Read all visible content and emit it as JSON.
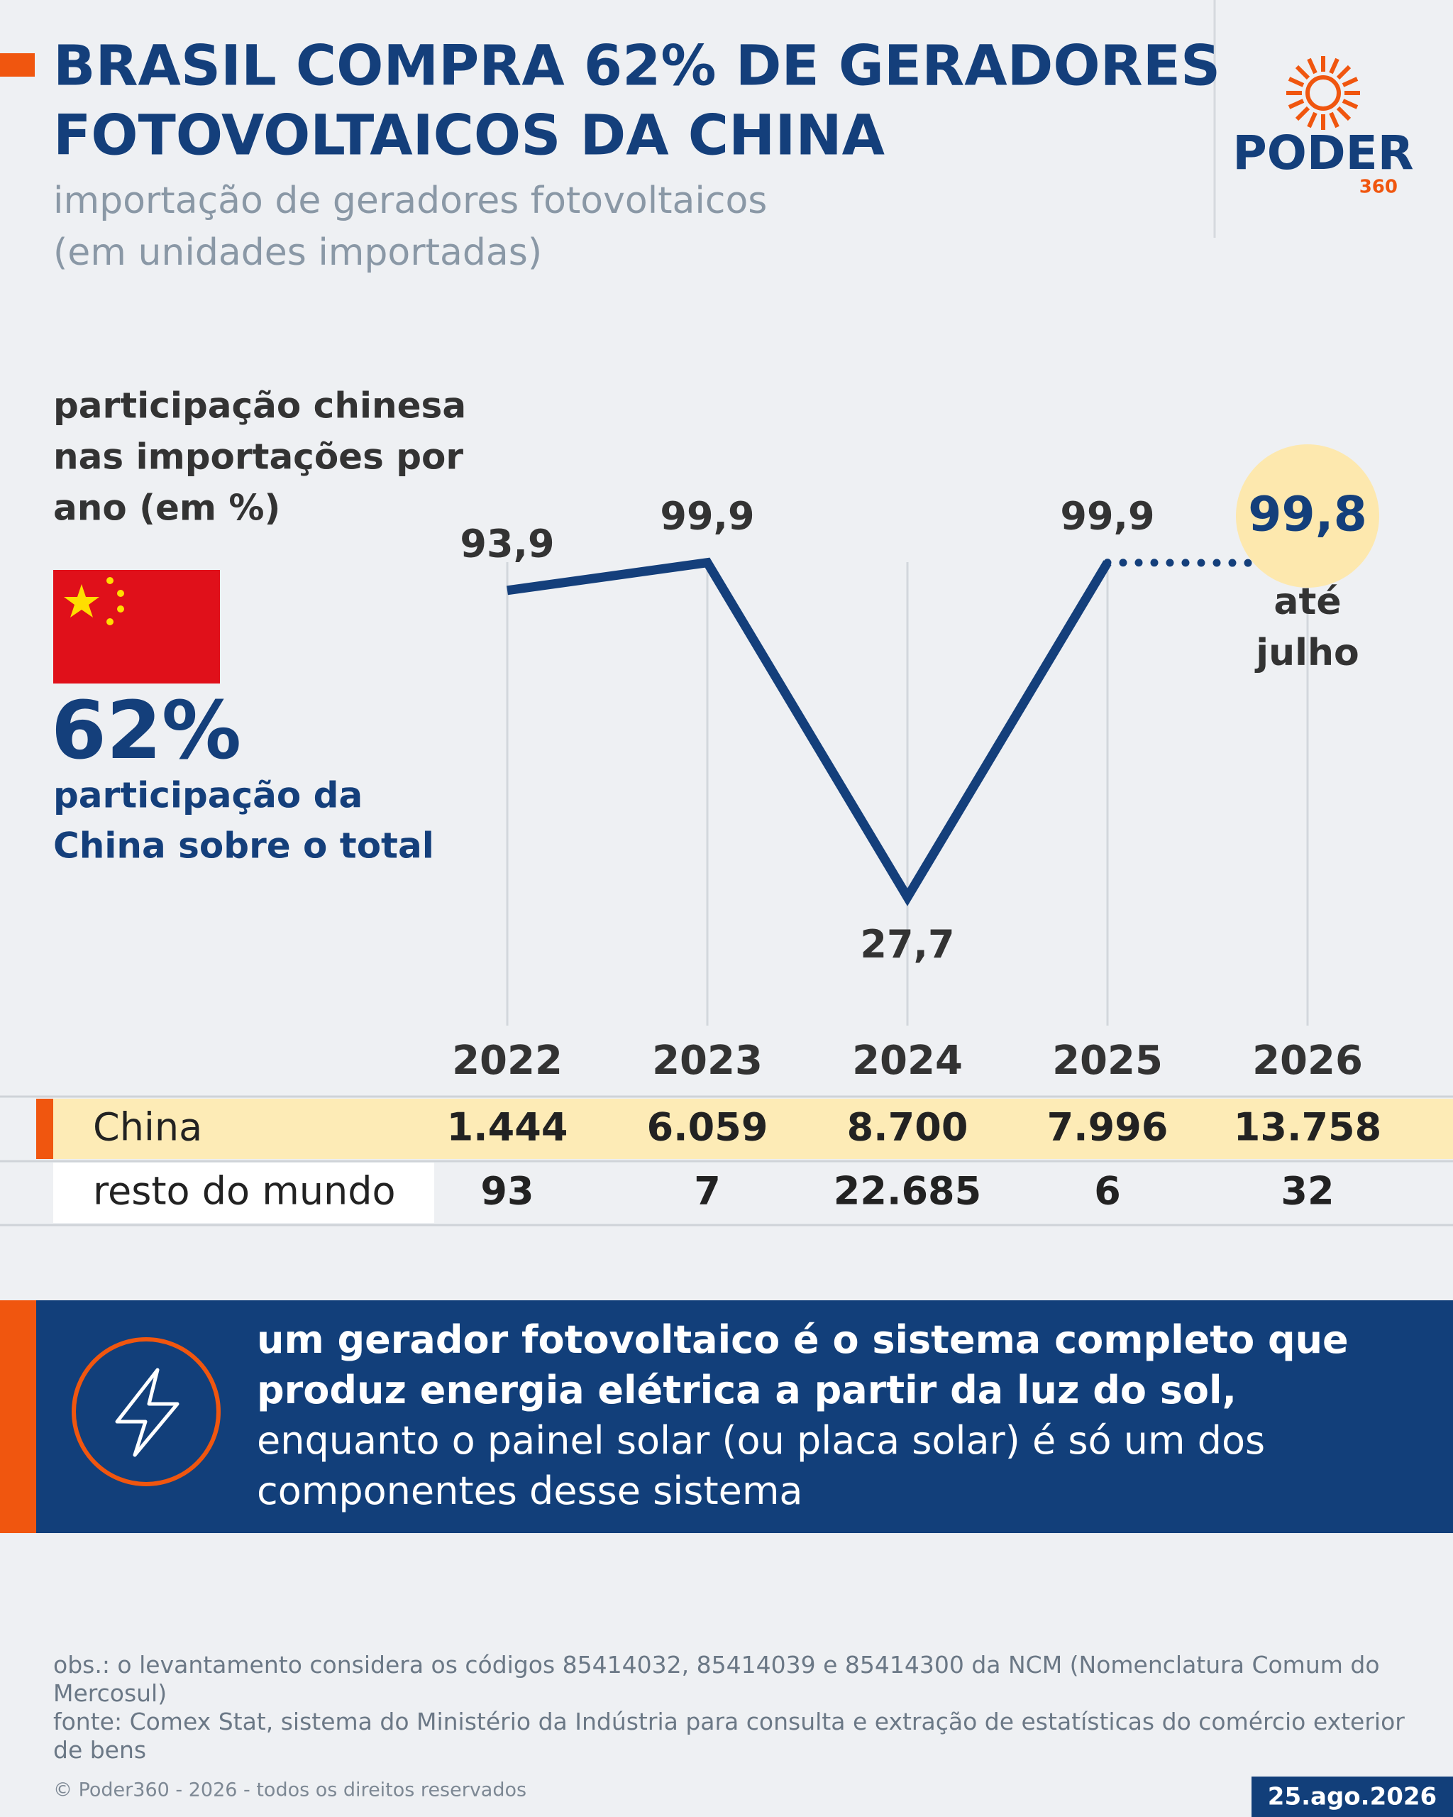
{
  "header": {
    "title_lines": [
      "BRASIL COMPRA 62% DE GERADORES",
      "FOTOVOLTAICOS DA CHINA"
    ],
    "subtitle_lines": [
      "importação de geradores fotovoltaicos",
      "(em unidades importadas)"
    ],
    "logo": "PODER",
    "logo_sub": "360"
  },
  "sidebar": {
    "label_lines": [
      "participação chinesa",
      "nas importações por",
      "ano (em %)"
    ],
    "highlight": "62%",
    "caption_lines": [
      "participação da",
      "China sobre o total"
    ]
  },
  "chart_data": {
    "type": "line",
    "categories": [
      "2022",
      "2023",
      "2024",
      "2025",
      "2026"
    ],
    "values": [
      93.9,
      99.9,
      27.7,
      99.9,
      99.8
    ],
    "value_labels": [
      "93,9",
      "99,9",
      "27,7",
      "99,9",
      "99,8"
    ],
    "color": "#143f7b",
    "ylim": [
      0,
      100
    ],
    "annotation_lines": [
      "até",
      "julho"
    ]
  },
  "table": {
    "rows": [
      {
        "label": "China",
        "values": [
          "1.444",
          "6.059",
          "8.700",
          "7.996",
          "13.758"
        ]
      },
      {
        "label": "resto do mundo",
        "values": [
          "93",
          "7",
          "22.685",
          "6",
          "32"
        ]
      }
    ]
  },
  "note": {
    "bold": "um gerador fotovoltaico é o sistema completo que produz energia elétrica a partir da luz do sol,",
    "text": "enquanto o painel solar (ou placa solar) é só um dos componentes desse sistema"
  },
  "footer": {
    "obs": "obs.: o levantamento considera os códigos 85414032, 85414039 e 85414300 da NCM (Nomenclatura Comum do Mercosul)",
    "source": "fonte: Comex Stat, sistema do Ministério da Indústria para consulta e extração de estatísticas do comércio exterior de bens",
    "copyright": "© Poder360 - 2026 - todos os direitos reservados",
    "date": "25.ago.2026"
  }
}
